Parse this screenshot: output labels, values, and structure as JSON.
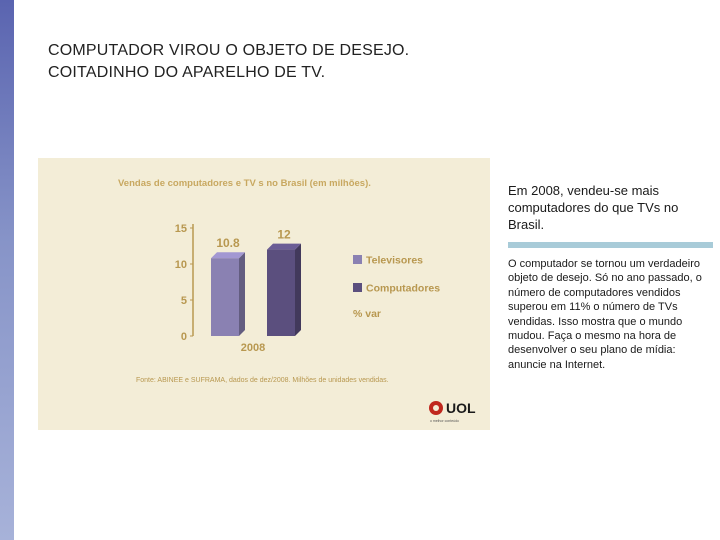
{
  "slide": {
    "title_line1": "COMPUTADOR VIROU O OBJETO DE DESEJO.",
    "title_line2": "COITADINHO DO APARELHO DE TV.",
    "headline": "Em 2008, vendeu-se mais computadores do que TVs no Brasil.",
    "body": "O computador se tornou um verdadeiro objeto de desejo. Só no ano passado, o número de computadores vendidos superou em 11% o número de TVs vendidas. Isso mostra que o mundo mudou. Faça o mesmo na hora de desenvolver o seu plano de mídia: anuncie na Internet.",
    "logo_text": "UOL",
    "logo_tagline": "o melhor conteúdo"
  },
  "colors": {
    "accent_bar": "#a8cbd8",
    "panel_bg": "#f3edd7",
    "chart_title": "#c8a860",
    "axis_text": "#b89850",
    "televisores": "#8a81b2",
    "computadores": "#5b4f7e",
    "logo_red": "#c0281e"
  },
  "chart_data": {
    "type": "bar",
    "title": "Vendas de computadores e TV s no Brasil (em milhões).",
    "categories": [
      "2008"
    ],
    "series": [
      {
        "name": "Televisores",
        "values": [
          10.8
        ],
        "data_labels": [
          "10.8"
        ]
      },
      {
        "name": "Computadores",
        "values": [
          12
        ],
        "data_labels": [
          "12"
        ]
      }
    ],
    "legend_extra": "% var",
    "yticks": [
      "0",
      "5",
      "10",
      "15"
    ],
    "ylim": [
      0,
      15
    ],
    "grid": false,
    "legend": "right",
    "source": "Fonte: ABINEE e SUFRAMA, dados de dez/2008. Milhões de unidades vendidas."
  }
}
